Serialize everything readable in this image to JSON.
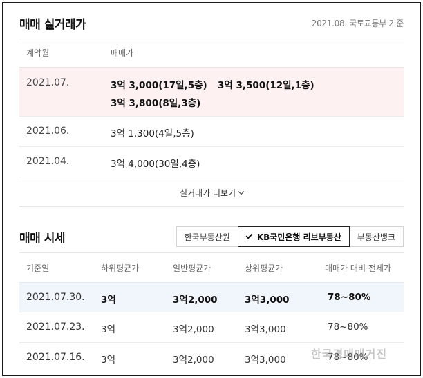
{
  "transactions": {
    "title": "매매 실거래가",
    "note": "2021.08. 국토교통부 기준",
    "col_date": "계약월",
    "col_price": "매매가",
    "rows": [
      {
        "date": "2021.07.",
        "prices": [
          "3억 3,000(17일,5층)",
          "3억 3,500(12일,1층)",
          "3억 3,800(8일,3층)"
        ]
      },
      {
        "date": "2021.06.",
        "prices": [
          "3억 1,300(4일,5층)"
        ]
      },
      {
        "date": "2021.04.",
        "prices": [
          "3억 4,000(30일,4층)"
        ]
      }
    ],
    "more_label": "실거래가 더보기"
  },
  "market": {
    "title": "매매 시세",
    "tabs": [
      "한국부동산원",
      "KB국민은행 리브부동산",
      "부동산뱅크"
    ],
    "active_tab": 1,
    "headers": [
      "기준일",
      "하위평균가",
      "일반평균가",
      "상위평균가",
      "매매가 대비 전세가"
    ],
    "rows": [
      [
        "2021.07.30.",
        "3억",
        "3억2,000",
        "3억3,000",
        "78~80%"
      ],
      [
        "2021.07.23.",
        "3억",
        "3억2,000",
        "3억3,000",
        "78~80%"
      ],
      [
        "2021.07.16.",
        "3억",
        "3억2,000",
        "3억3,000",
        "78~80%"
      ]
    ]
  },
  "watermark": "한국경매매거진",
  "colors": {
    "highlight_pink": "#fdf1f1",
    "highlight_blue": "#f1f6fc",
    "divider": "#e6e6e6"
  }
}
